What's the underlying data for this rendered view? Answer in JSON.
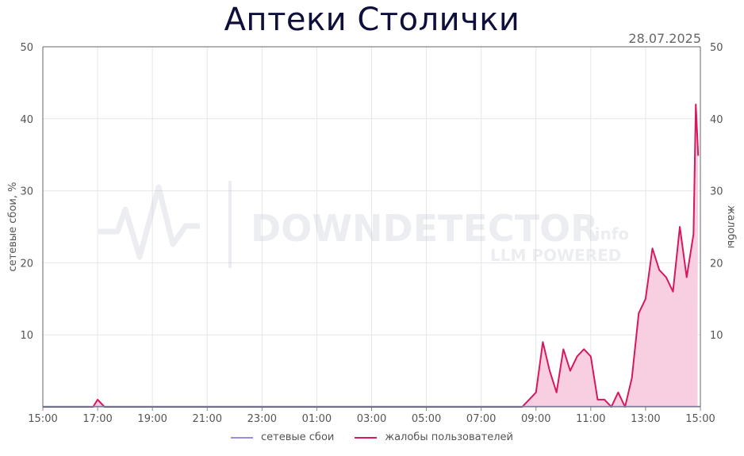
{
  "title": "Аптеки Столички",
  "date": "28.07.2025",
  "watermark": {
    "brand": "DOWNDETECTOR",
    "suffix": ".info",
    "sub": "LLM POWERED"
  },
  "colors": {
    "outages": "#9a8ee0",
    "complaints": "#d6195f",
    "complaints_fill": "#f7cfe0",
    "grid": "#e6e6e6"
  },
  "chart_data": {
    "type": "area",
    "title": "Аптеки Столички",
    "ylabel_left": "сетевые сбои, %",
    "ylabel_right": "жалобы",
    "ylim": [
      0,
      50
    ],
    "yticks": [
      10,
      20,
      30,
      40,
      50
    ],
    "xticks": [
      "15:00",
      "17:00",
      "19:00",
      "21:00",
      "23:00",
      "01:00",
      "03:00",
      "05:00",
      "07:00",
      "09:00",
      "11:00",
      "13:00",
      "15:00"
    ],
    "x_hours_range": [
      0,
      24
    ],
    "legend_position": "bottom",
    "grid": true,
    "series": [
      {
        "name": "сетевые сбои",
        "axis": "left",
        "x": [
          "15:00",
          "15:00"
        ],
        "values": [
          0,
          0
        ]
      },
      {
        "name": "жалобы пользователей",
        "axis": "right",
        "x": [
          "15:00",
          "16:50",
          "17:00",
          "17:15",
          "08:30",
          "08:45",
          "09:00",
          "09:15",
          "09:30",
          "09:45",
          "10:00",
          "10:15",
          "10:30",
          "10:45",
          "11:00",
          "11:15",
          "11:30",
          "11:45",
          "12:00",
          "12:15",
          "12:30",
          "12:45",
          "13:00",
          "13:15",
          "13:30",
          "13:45",
          "14:00",
          "14:15",
          "14:30",
          "14:45",
          "14:50"
        ],
        "values": [
          0,
          0,
          1,
          0,
          0,
          1,
          2,
          9,
          5,
          2,
          8,
          5,
          7,
          8,
          7,
          1,
          1,
          0,
          2,
          0,
          4,
          13,
          15,
          22,
          19,
          18,
          16,
          25,
          18,
          24,
          42
        ]
      }
    ]
  }
}
